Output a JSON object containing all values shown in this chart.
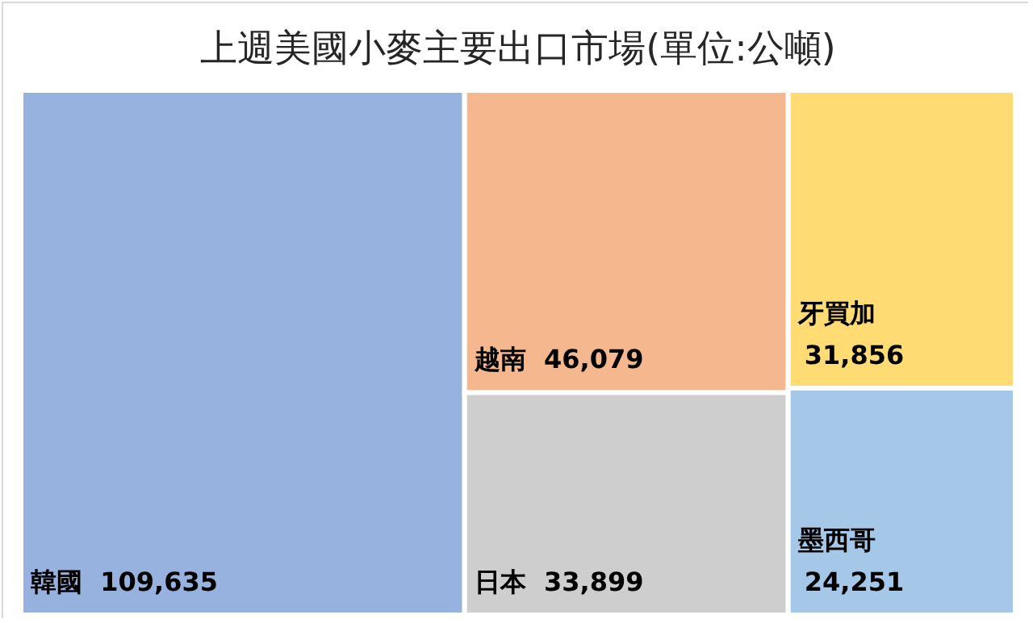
{
  "chart_data": {
    "type": "other",
    "title": "上週美國小麥主要出口市場(單位:公噸)",
    "categories": [
      "韓國",
      "越南",
      "日本",
      "牙買加",
      "墨西哥"
    ],
    "values": [
      109635,
      46079,
      33899,
      31856,
      24251
    ],
    "value_labels": [
      "109,635",
      "46,079",
      "33,899",
      "31,856",
      "24,251"
    ],
    "colors": [
      "#4472c4",
      "#ed7d31",
      "#a5a5a5",
      "#ffc000",
      "#5b9bd5"
    ]
  }
}
